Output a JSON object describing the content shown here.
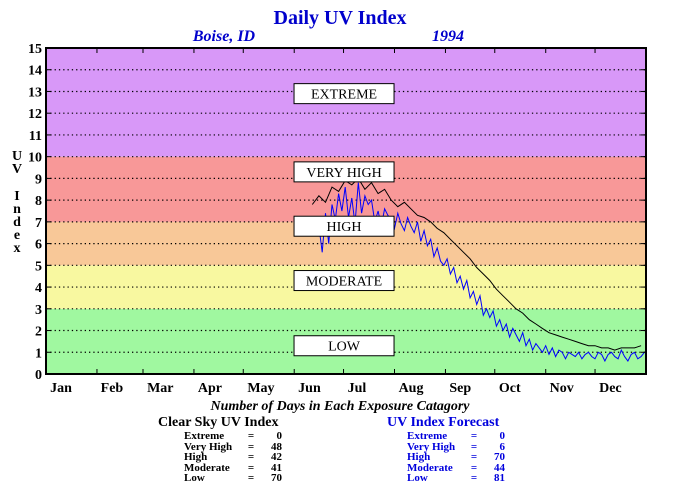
{
  "chart_data": {
    "type": "line",
    "title": "Daily UV Index",
    "subtitle_location": "Boise, ID",
    "subtitle_year": "1994",
    "ylabel": "UV Index",
    "ylim": [
      0,
      15
    ],
    "yticks": [
      0,
      1,
      2,
      3,
      4,
      5,
      6,
      7,
      8,
      9,
      10,
      11,
      12,
      13,
      14,
      15
    ],
    "xlim": [
      0,
      365
    ],
    "months": [
      "Jan",
      "Feb",
      "Mar",
      "Apr",
      "May",
      "Jun",
      "Jul",
      "Aug",
      "Sep",
      "Oct",
      "Nov",
      "Dec"
    ],
    "month_days": [
      0,
      31,
      59,
      90,
      120,
      151,
      181,
      212,
      243,
      273,
      304,
      334
    ],
    "grid": "dotted horizontal",
    "bands": [
      {
        "name": "LOW",
        "from": 0,
        "to": 3,
        "color": "#a0f8a0"
      },
      {
        "name": "MODERATE",
        "from": 3,
        "to": 5,
        "color": "#f8f8a0"
      },
      {
        "name": "HIGH",
        "from": 5,
        "to": 7,
        "color": "#f8c898"
      },
      {
        "name": "VERY HIGH",
        "from": 7,
        "to": 10,
        "color": "#f89898"
      },
      {
        "name": "EXTREME",
        "from": 10,
        "to": 15,
        "color": "#d898f8"
      }
    ],
    "band_labels": [
      {
        "text": "EXTREME",
        "y": 12.9
      },
      {
        "text": "VERY HIGH",
        "y": 9.3
      },
      {
        "text": "HIGH",
        "y": 6.8
      },
      {
        "text": "MODERATE",
        "y": 4.3
      },
      {
        "text": "LOW",
        "y": 1.3
      }
    ],
    "series": [
      {
        "name": "Clear Sky UV Index",
        "color": "#000000",
        "x": [
          162,
          166,
          170,
          174,
          178,
          182,
          186,
          190,
          194,
          198,
          202,
          206,
          210,
          214,
          218,
          222,
          226,
          230,
          234,
          238,
          242,
          246,
          250,
          254,
          258,
          262,
          266,
          270,
          274,
          278,
          282,
          286,
          290,
          294,
          298,
          302,
          306,
          310,
          314,
          318,
          322,
          326,
          330,
          334,
          338,
          342,
          346,
          350,
          354,
          358,
          362
        ],
        "values": [
          7.8,
          8.2,
          7.9,
          8.6,
          8.4,
          8.9,
          8.7,
          9.0,
          8.5,
          8.8,
          8.3,
          8.5,
          8.0,
          7.7,
          7.9,
          7.6,
          7.3,
          7.2,
          7.0,
          6.7,
          6.5,
          6.2,
          5.9,
          5.6,
          5.3,
          4.9,
          4.6,
          4.3,
          3.9,
          3.6,
          3.3,
          3.0,
          2.8,
          2.5,
          2.3,
          2.1,
          1.9,
          1.8,
          1.7,
          1.6,
          1.5,
          1.4,
          1.3,
          1.3,
          1.2,
          1.2,
          1.1,
          1.2,
          1.2,
          1.2,
          1.3
        ]
      },
      {
        "name": "UV Index Forecast",
        "color": "#0000ff",
        "x": [
          164,
          166,
          168,
          170,
          172,
          174,
          176,
          178,
          180,
          182,
          184,
          186,
          188,
          190,
          192,
          194,
          196,
          198,
          200,
          202,
          204,
          206,
          208,
          210,
          212,
          214,
          216,
          218,
          220,
          222,
          224,
          226,
          228,
          230,
          232,
          234,
          236,
          238,
          240,
          242,
          244,
          246,
          248,
          250,
          252,
          254,
          256,
          258,
          260,
          262,
          264,
          266,
          268,
          270,
          272,
          274,
          276,
          278,
          280,
          282,
          284,
          286,
          288,
          290,
          292,
          294,
          296,
          298,
          300,
          302,
          304,
          306,
          308,
          310,
          312,
          314,
          316,
          318,
          320,
          322,
          324,
          326,
          328,
          330,
          332,
          334,
          336,
          338,
          340,
          342,
          344,
          346,
          348,
          350,
          352,
          354,
          356,
          358,
          360,
          362,
          364
        ],
        "values": [
          7.2,
          6.8,
          5.6,
          7.4,
          6.0,
          7.8,
          7.1,
          8.3,
          7.5,
          8.6,
          7.2,
          8.1,
          6.9,
          8.8,
          7.4,
          8.2,
          7.8,
          8.0,
          7.0,
          7.5,
          6.8,
          7.6,
          7.3,
          7.1,
          6.7,
          7.4,
          6.9,
          6.6,
          7.2,
          6.8,
          6.5,
          7.0,
          6.1,
          6.6,
          5.9,
          6.2,
          5.4,
          5.8,
          5.2,
          5.0,
          5.3,
          4.6,
          4.9,
          4.2,
          4.5,
          3.9,
          4.3,
          3.5,
          3.8,
          3.2,
          3.6,
          2.7,
          3.0,
          2.6,
          2.9,
          2.2,
          2.5,
          2.0,
          2.3,
          1.7,
          2.1,
          1.8,
          1.5,
          1.9,
          1.3,
          1.6,
          1.1,
          1.4,
          1.2,
          1.0,
          1.3,
          0.9,
          1.2,
          0.8,
          1.1,
          1.0,
          0.7,
          1.0,
          0.9,
          0.8,
          1.0,
          0.7,
          0.9,
          1.0,
          0.8,
          0.7,
          1.0,
          0.9,
          0.6,
          0.9,
          1.0,
          0.8,
          0.7,
          1.1,
          0.8,
          0.6,
          0.9,
          1.0,
          0.7,
          0.8,
          1.0
        ]
      }
    ],
    "summary_title": "Number of Days in Each Exposure Catagory",
    "summary": [
      {
        "title": "Clear Sky UV Index",
        "rows": [
          {
            "label": "Extreme",
            "value": 0
          },
          {
            "label": "Very High",
            "value": 48
          },
          {
            "label": "High",
            "value": 42
          },
          {
            "label": "Moderate",
            "value": 41
          },
          {
            "label": "Low",
            "value": 70
          }
        ]
      },
      {
        "title": "UV Index Forecast",
        "rows": [
          {
            "label": "Extreme",
            "value": 0
          },
          {
            "label": "Very High",
            "value": 6
          },
          {
            "label": "High",
            "value": 70
          },
          {
            "label": "Moderate",
            "value": 44
          },
          {
            "label": "Low",
            "value": 81
          }
        ]
      }
    ]
  }
}
